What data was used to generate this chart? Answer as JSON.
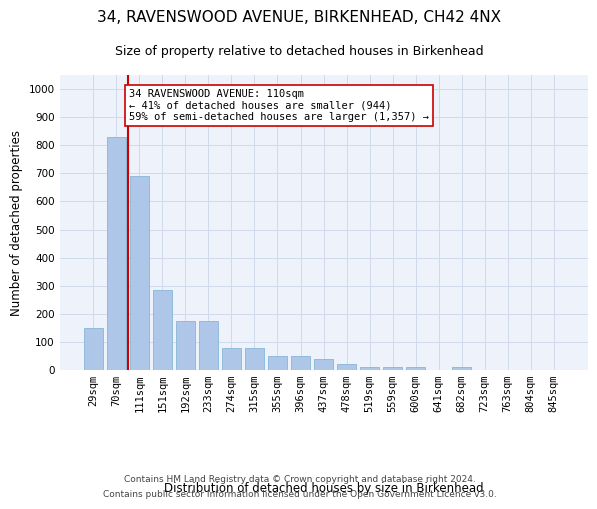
{
  "title1": "34, RAVENSWOOD AVENUE, BIRKENHEAD, CH42 4NX",
  "title2": "Size of property relative to detached houses in Birkenhead",
  "xlabel": "Distribution of detached houses by size in Birkenhead",
  "ylabel": "Number of detached properties",
  "categories": [
    "29sqm",
    "70sqm",
    "111sqm",
    "151sqm",
    "192sqm",
    "233sqm",
    "274sqm",
    "315sqm",
    "355sqm",
    "396sqm",
    "437sqm",
    "478sqm",
    "519sqm",
    "559sqm",
    "600sqm",
    "641sqm",
    "682sqm",
    "723sqm",
    "763sqm",
    "804sqm",
    "845sqm"
  ],
  "values": [
    150,
    830,
    690,
    283,
    175,
    175,
    80,
    78,
    50,
    50,
    40,
    20,
    10,
    10,
    10,
    0,
    10,
    0,
    0,
    0,
    0
  ],
  "bar_color": "#aec6e8",
  "bar_edgecolor": "#7aafd4",
  "property_index": 2,
  "red_line_color": "#cc0000",
  "annotation_text": "34 RAVENSWOOD AVENUE: 110sqm\n← 41% of detached houses are smaller (944)\n59% of semi-detached houses are larger (1,357) →",
  "annotation_box_edgecolor": "#cc0000",
  "ylim": [
    0,
    1050
  ],
  "yticks": [
    0,
    100,
    200,
    300,
    400,
    500,
    600,
    700,
    800,
    900,
    1000
  ],
  "grid_color": "#d0daea",
  "background_color": "#eef2fa",
  "footnote1": "Contains HM Land Registry data © Crown copyright and database right 2024.",
  "footnote2": "Contains public sector information licensed under the Open Government Licence v3.0.",
  "title1_fontsize": 11,
  "title2_fontsize": 9,
  "xlabel_fontsize": 8.5,
  "ylabel_fontsize": 8.5,
  "tick_fontsize": 7.5,
  "annot_fontsize": 7.5
}
